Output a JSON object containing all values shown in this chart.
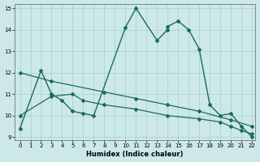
{
  "xlabel": "Humidex (Indice chaleur)",
  "xlim": [
    -0.5,
    22.3
  ],
  "ylim": [
    8.85,
    15.2
  ],
  "xticks": [
    0,
    1,
    2,
    3,
    4,
    5,
    6,
    7,
    8,
    9,
    10,
    11,
    12,
    13,
    14,
    15,
    16,
    17,
    18,
    19,
    20,
    21,
    22
  ],
  "yticks": [
    9,
    10,
    11,
    12,
    13,
    14,
    15
  ],
  "bg_color": "#cde8e8",
  "line_color": "#1a6b5a",
  "grid_color": "#a8d4d4",
  "series": {
    "curve": {
      "x": [
        0,
        2,
        3,
        4,
        5,
        6,
        7,
        10,
        11,
        13,
        14,
        14,
        15,
        16,
        17,
        18,
        19,
        20,
        21,
        22
      ],
      "y": [
        9.4,
        12.1,
        11.0,
        10.7,
        10.2,
        10.1,
        10.0,
        14.1,
        15.0,
        13.5,
        14.0,
        14.15,
        14.4,
        14.0,
        13.1,
        10.5,
        10.0,
        10.1,
        9.5,
        9.0
      ]
    },
    "line1": {
      "x": [
        0,
        3,
        8,
        11,
        14,
        17,
        20,
        22
      ],
      "y": [
        12.0,
        11.6,
        11.1,
        10.8,
        10.5,
        10.2,
        9.8,
        9.5
      ]
    },
    "line2": {
      "x": [
        0,
        3,
        5,
        6,
        8,
        11,
        14,
        17,
        19,
        20,
        21,
        22
      ],
      "y": [
        10.0,
        10.9,
        11.0,
        10.7,
        10.5,
        10.3,
        10.0,
        9.85,
        9.7,
        9.5,
        9.3,
        9.15
      ]
    }
  }
}
